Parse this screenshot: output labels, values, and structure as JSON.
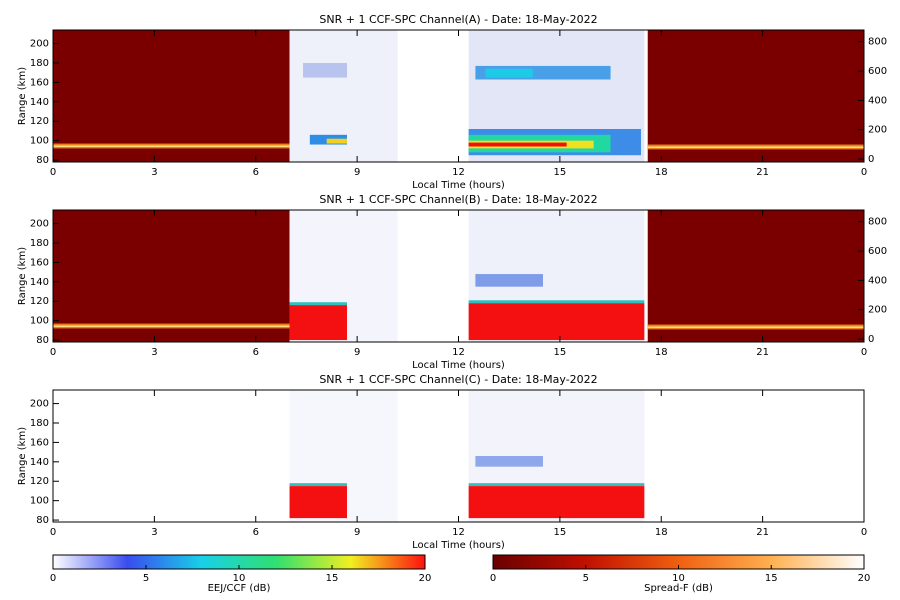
{
  "chart_data": [
    {
      "type": "heatmap",
      "title": "SNR + 1 CCF-SPC Channel(A) - Date: 18-May-2022",
      "xlabel": "Local Time (hours)",
      "ylabel": "Range (km)",
      "xlim": [
        0,
        24
      ],
      "xticks": [
        0,
        3,
        6,
        9,
        12,
        15,
        18,
        21,
        {
          "value": 24,
          "label": "0"
        }
      ],
      "ylim": [
        78,
        214
      ],
      "yticks": [
        80,
        100,
        120,
        140,
        160,
        180,
        200
      ],
      "y2lim": [
        -20,
        880
      ],
      "y2ticks": [
        0,
        200,
        400,
        600,
        800
      ],
      "blocks": [
        {
          "x": [
            0,
            7
          ],
          "y": [
            78,
            214
          ],
          "color": "#7a0000"
        },
        {
          "x": [
            0,
            7
          ],
          "y": [
            92,
            97
          ],
          "color": "#e8801c"
        },
        {
          "x": [
            0,
            7
          ],
          "y": [
            93.5,
            95
          ],
          "color": "#ffe080"
        },
        {
          "x": [
            7,
            10.2
          ],
          "y": [
            78,
            214
          ],
          "color": "#eef0fa"
        },
        {
          "x": [
            7.4,
            8.7
          ],
          "y": [
            165,
            180
          ],
          "color": "#b8c4ee"
        },
        {
          "x": [
            7.6,
            8.7
          ],
          "y": [
            96,
            106
          ],
          "color": "#2e8ee6"
        },
        {
          "x": [
            8.1,
            8.7
          ],
          "y": [
            97,
            102
          ],
          "color": "#f0d020"
        },
        {
          "x": [
            12.3,
            17.5
          ],
          "y": [
            78,
            214
          ],
          "color": "#e2e6f6"
        },
        {
          "x": [
            12.5,
            16.5
          ],
          "y": [
            163,
            177
          ],
          "color": "#4aa0e8"
        },
        {
          "x": [
            12.8,
            14.2
          ],
          "y": [
            165,
            174
          ],
          "color": "#1ecbe6"
        },
        {
          "x": [
            12.3,
            17.4
          ],
          "y": [
            85,
            112
          ],
          "color": "#3c8ce8"
        },
        {
          "x": [
            12.3,
            16.5
          ],
          "y": [
            88,
            106
          ],
          "color": "#20d8a0"
        },
        {
          "x": [
            12.3,
            16
          ],
          "y": [
            92,
            100
          ],
          "color": "#f0e020"
        },
        {
          "x": [
            12.3,
            15.2
          ],
          "y": [
            94,
            98
          ],
          "color": "#f01010"
        },
        {
          "x": [
            17.6,
            24
          ],
          "y": [
            78,
            214
          ],
          "color": "#7a0000"
        },
        {
          "x": [
            17.6,
            24
          ],
          "y": [
            91,
            96
          ],
          "color": "#e8801c"
        },
        {
          "x": [
            17.6,
            24
          ],
          "y": [
            92.5,
            94
          ],
          "color": "#ffe080"
        }
      ]
    },
    {
      "type": "heatmap",
      "title": "SNR + 1 CCF-SPC Channel(B) - Date: 18-May-2022",
      "xlabel": "Local Time (hours)",
      "ylabel": "Range (km)",
      "xlim": [
        0,
        24
      ],
      "xticks": [
        0,
        3,
        6,
        9,
        12,
        15,
        18,
        21,
        {
          "value": 24,
          "label": "0"
        }
      ],
      "ylim": [
        78,
        214
      ],
      "yticks": [
        80,
        100,
        120,
        140,
        160,
        180,
        200
      ],
      "y2lim": [
        -20,
        880
      ],
      "y2ticks": [
        0,
        200,
        400,
        600,
        800
      ],
      "blocks": [
        {
          "x": [
            0,
            7
          ],
          "y": [
            78,
            214
          ],
          "color": "#7a0000"
        },
        {
          "x": [
            0,
            7
          ],
          "y": [
            92,
            97
          ],
          "color": "#e8801c"
        },
        {
          "x": [
            0,
            7
          ],
          "y": [
            93.5,
            95
          ],
          "color": "#ffe080"
        },
        {
          "x": [
            7,
            10.2
          ],
          "y": [
            78,
            214
          ],
          "color": "#f4f5fc"
        },
        {
          "x": [
            7,
            8.7
          ],
          "y": [
            116,
            119
          ],
          "color": "#30c0c0"
        },
        {
          "x": [
            7,
            8.7
          ],
          "y": [
            80,
            116
          ],
          "color": "#f41010"
        },
        {
          "x": [
            12.3,
            17.5
          ],
          "y": [
            78,
            214
          ],
          "color": "#eef0fa"
        },
        {
          "x": [
            12.5,
            14.5
          ],
          "y": [
            135,
            148
          ],
          "color": "#7f9ce8"
        },
        {
          "x": [
            12.3,
            17.5
          ],
          "y": [
            118,
            121
          ],
          "color": "#30c0c0"
        },
        {
          "x": [
            12.3,
            17.5
          ],
          "y": [
            80,
            118
          ],
          "color": "#f41010"
        },
        {
          "x": [
            17.6,
            24
          ],
          "y": [
            78,
            214
          ],
          "color": "#7a0000"
        },
        {
          "x": [
            17.6,
            24
          ],
          "y": [
            91,
            96
          ],
          "color": "#e8801c"
        },
        {
          "x": [
            17.6,
            24
          ],
          "y": [
            92.5,
            94
          ],
          "color": "#ffe080"
        }
      ]
    },
    {
      "type": "heatmap",
      "title": "SNR + 1 CCF-SPC Channel(C) - Date: 18-May-2022",
      "xlabel": "Local Time (hours)",
      "ylabel": "Range (km)",
      "xlim": [
        0,
        24
      ],
      "xticks": [
        0,
        3,
        6,
        9,
        12,
        15,
        18,
        21,
        {
          "value": 24,
          "label": "0"
        }
      ],
      "ylim": [
        78,
        214
      ],
      "yticks": [
        80,
        100,
        120,
        140,
        160,
        180,
        200
      ],
      "blocks": [
        {
          "x": [
            7,
            10.2
          ],
          "y": [
            78,
            214
          ],
          "color": "#f6f7fc"
        },
        {
          "x": [
            7,
            8.7
          ],
          "y": [
            115,
            118
          ],
          "color": "#30c0c0"
        },
        {
          "x": [
            7,
            8.7
          ],
          "y": [
            82,
            115
          ],
          "color": "#f41010"
        },
        {
          "x": [
            12.3,
            17.5
          ],
          "y": [
            78,
            214
          ],
          "color": "#f2f3fb"
        },
        {
          "x": [
            12.5,
            14.5
          ],
          "y": [
            135,
            146
          ],
          "color": "#8fa8ec"
        },
        {
          "x": [
            12.3,
            17.5
          ],
          "y": [
            115,
            118
          ],
          "color": "#30c0c0"
        },
        {
          "x": [
            12.3,
            17.5
          ],
          "y": [
            82,
            115
          ],
          "color": "#f41010"
        }
      ]
    },
    {
      "type": "colorbar",
      "label": "EEJ/CCF (dB)",
      "lim": [
        0,
        20
      ],
      "ticks": [
        0,
        5,
        10,
        15,
        20
      ],
      "colors": [
        "#ffffff",
        "#3a4cf0",
        "#18d0e8",
        "#30e070",
        "#f0f020",
        "#ff1010"
      ]
    },
    {
      "type": "colorbar",
      "label": "Spread-F (dB)",
      "lim": [
        0,
        20
      ],
      "ticks": [
        0,
        5,
        10,
        15,
        20
      ],
      "colors": [
        "#6a0000",
        "#c01000",
        "#f06010",
        "#ffb050",
        "#ffffff"
      ]
    }
  ]
}
